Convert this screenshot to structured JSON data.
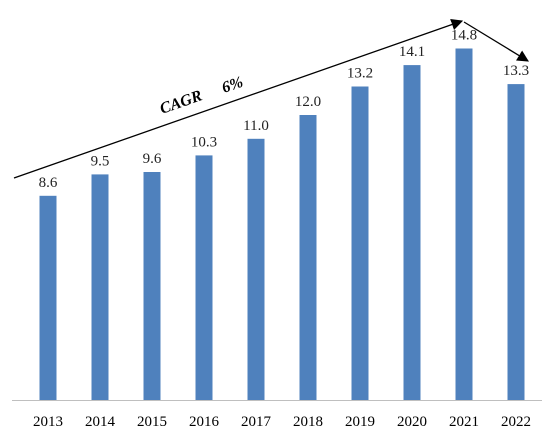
{
  "chart_data": {
    "type": "bar",
    "categories": [
      "2013",
      "2014",
      "2015",
      "2016",
      "2017",
      "2018",
      "2019",
      "2020",
      "2021",
      "2022"
    ],
    "values": [
      8.6,
      9.5,
      9.6,
      10.3,
      11.0,
      12.0,
      13.2,
      14.1,
      14.8,
      13.3
    ],
    "data_labels": [
      "8.6",
      "9.5",
      "9.6",
      "10.3",
      "11.0",
      "12.0",
      "13.2",
      "14.1",
      "14.8",
      "13.3"
    ],
    "bar_color": "#4f81bd",
    "ylim": [
      0,
      16
    ],
    "grid": false,
    "axis": {
      "x_visible": true,
      "y_visible": false
    },
    "annotations": [
      {
        "label": "CAGR",
        "value": "6%",
        "type": "trend-arrow",
        "from": "2013",
        "to": "2021",
        "direction": "up"
      },
      {
        "type": "trend-arrow",
        "from": "2021",
        "to": "2022",
        "direction": "down"
      }
    ]
  }
}
